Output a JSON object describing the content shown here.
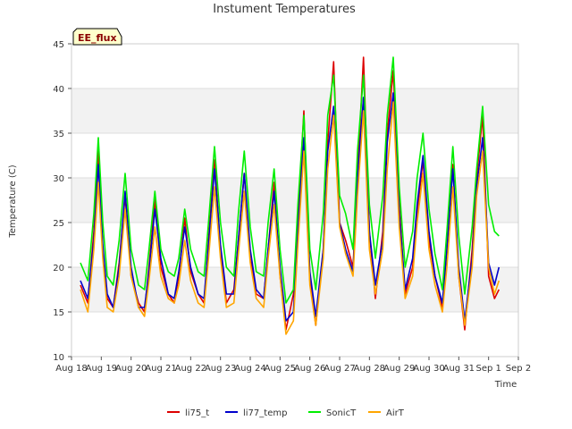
{
  "chart_data": {
    "type": "line",
    "title": "Instument Temperatures",
    "xlabel": "Time",
    "ylabel": "Temperature (C)",
    "ylim": [
      10,
      45
    ],
    "yticks": [
      10,
      15,
      20,
      25,
      30,
      35,
      40,
      45
    ],
    "xlim": [
      18,
      33
    ],
    "xticks": [
      {
        "v": 18,
        "label": "Aug 18"
      },
      {
        "v": 19,
        "label": "Aug 19"
      },
      {
        "v": 20,
        "label": "Aug 20"
      },
      {
        "v": 21,
        "label": "Aug 21"
      },
      {
        "v": 22,
        "label": "Aug 22"
      },
      {
        "v": 23,
        "label": "Aug 23"
      },
      {
        "v": 24,
        "label": "Aug 24"
      },
      {
        "v": 25,
        "label": "Aug 25"
      },
      {
        "v": 26,
        "label": "Aug 26"
      },
      {
        "v": 27,
        "label": "Aug 27"
      },
      {
        "v": 28,
        "label": "Aug 28"
      },
      {
        "v": 29,
        "label": "Aug 29"
      },
      {
        "v": 30,
        "label": "Aug 30"
      },
      {
        "v": 31,
        "label": "Aug 31"
      },
      {
        "v": 32,
        "label": "Sep 1"
      },
      {
        "v": 33,
        "label": "Sep 2"
      }
    ],
    "annotation": "EE_flux",
    "grid": "horizontal bands",
    "legend_position": "bottom",
    "series": [
      {
        "name": "li75_t",
        "color": "#dd0000",
        "x": [
          18.3,
          18.55,
          18.75,
          18.9,
          19.05,
          19.2,
          19.4,
          19.6,
          19.8,
          20.0,
          20.25,
          20.45,
          20.6,
          20.8,
          21.0,
          21.25,
          21.45,
          21.6,
          21.8,
          22.0,
          22.25,
          22.45,
          22.6,
          22.8,
          23.0,
          23.2,
          23.45,
          23.6,
          23.8,
          24.0,
          24.2,
          24.45,
          24.6,
          24.8,
          25.0,
          25.2,
          25.45,
          25.6,
          25.8,
          26.0,
          26.2,
          26.45,
          26.6,
          26.8,
          27.0,
          27.2,
          27.45,
          27.6,
          27.8,
          28.0,
          28.2,
          28.45,
          28.6,
          28.8,
          29.0,
          29.2,
          29.45,
          29.6,
          29.8,
          30.0,
          30.2,
          30.45,
          30.6,
          30.8,
          31.0,
          31.2,
          31.45,
          31.6,
          31.8,
          32.0,
          32.2,
          32.35
        ],
        "y": [
          18.0,
          16.0,
          24.0,
          33.0,
          22.0,
          16.5,
          15.5,
          20.5,
          28.0,
          19.0,
          16.0,
          15.0,
          20.0,
          27.5,
          20.0,
          17.0,
          16.0,
          19.0,
          25.5,
          19.5,
          17.0,
          16.0,
          23.0,
          32.0,
          22.0,
          16.0,
          17.5,
          23.0,
          30.5,
          21.0,
          17.0,
          16.5,
          22.0,
          29.5,
          19.0,
          13.0,
          17.0,
          25.0,
          37.5,
          18.5,
          13.5,
          22.0,
          34.0,
          43.0,
          25.0,
          23.0,
          20.0,
          30.0,
          43.5,
          24.0,
          16.5,
          24.0,
          35.0,
          42.0,
          27.0,
          17.0,
          20.0,
          26.0,
          32.0,
          23.0,
          19.0,
          15.5,
          22.0,
          31.5,
          19.0,
          13.0,
          22.0,
          30.0,
          37.0,
          19.0,
          16.5,
          17.5
        ]
      },
      {
        "name": "li77_temp",
        "color": "#0000cc",
        "x": [
          18.3,
          18.55,
          18.75,
          18.9,
          19.05,
          19.2,
          19.4,
          19.6,
          19.8,
          20.0,
          20.25,
          20.45,
          20.6,
          20.8,
          21.0,
          21.25,
          21.45,
          21.6,
          21.8,
          22.0,
          22.25,
          22.45,
          22.6,
          22.8,
          23.0,
          23.2,
          23.45,
          23.6,
          23.8,
          24.0,
          24.2,
          24.45,
          24.6,
          24.8,
          25.0,
          25.2,
          25.45,
          25.6,
          25.8,
          26.0,
          26.2,
          26.45,
          26.6,
          26.8,
          27.0,
          27.2,
          27.45,
          27.6,
          27.8,
          28.0,
          28.2,
          28.45,
          28.6,
          28.8,
          29.0,
          29.2,
          29.45,
          29.6,
          29.8,
          30.0,
          30.2,
          30.45,
          30.6,
          30.8,
          31.0,
          31.2,
          31.45,
          31.6,
          31.8,
          32.0,
          32.2,
          32.35
        ],
        "y": [
          18.5,
          16.5,
          23.0,
          31.5,
          22.5,
          17.0,
          15.5,
          20.0,
          28.5,
          20.0,
          15.5,
          15.5,
          19.5,
          26.5,
          21.0,
          17.0,
          16.5,
          19.5,
          24.5,
          20.0,
          17.0,
          16.5,
          22.5,
          31.0,
          22.5,
          17.0,
          17.0,
          23.0,
          30.5,
          22.0,
          17.5,
          16.5,
          22.0,
          28.5,
          20.0,
          14.0,
          15.0,
          24.0,
          34.5,
          19.5,
          14.5,
          22.0,
          33.0,
          38.0,
          25.0,
          22.0,
          19.5,
          30.0,
          39.0,
          24.0,
          18.0,
          23.0,
          34.0,
          39.5,
          26.0,
          17.5,
          21.0,
          27.0,
          32.5,
          24.0,
          19.0,
          16.0,
          22.0,
          31.0,
          20.0,
          14.0,
          21.0,
          29.0,
          34.5,
          20.5,
          18.0,
          20.0
        ]
      },
      {
        "name": "SonicT",
        "color": "#00ee00",
        "x": [
          18.3,
          18.55,
          18.75,
          18.9,
          19.05,
          19.2,
          19.4,
          19.6,
          19.8,
          20.0,
          20.25,
          20.45,
          20.6,
          20.8,
          21.0,
          21.25,
          21.45,
          21.6,
          21.8,
          22.0,
          22.25,
          22.45,
          22.6,
          22.8,
          23.0,
          23.2,
          23.45,
          23.6,
          23.8,
          24.0,
          24.2,
          24.45,
          24.6,
          24.8,
          25.0,
          25.2,
          25.45,
          25.6,
          25.8,
          26.0,
          26.2,
          26.45,
          26.6,
          26.8,
          27.0,
          27.2,
          27.45,
          27.6,
          27.8,
          28.0,
          28.2,
          28.45,
          28.6,
          28.8,
          29.0,
          29.2,
          29.45,
          29.6,
          29.8,
          30.0,
          30.2,
          30.45,
          30.6,
          30.8,
          31.0,
          31.2,
          31.45,
          31.6,
          31.8,
          32.0,
          32.2,
          32.35
        ],
        "y": [
          20.5,
          18.5,
          26.0,
          34.5,
          25.0,
          19.0,
          18.0,
          23.0,
          30.5,
          22.0,
          18.0,
          17.5,
          22.0,
          28.5,
          22.0,
          19.5,
          19.0,
          21.0,
          26.5,
          22.0,
          19.5,
          19.0,
          25.0,
          33.5,
          25.0,
          20.0,
          19.0,
          26.0,
          33.0,
          24.5,
          19.5,
          19.0,
          25.0,
          31.0,
          22.0,
          16.0,
          17.5,
          27.0,
          37.0,
          22.0,
          17.5,
          26.0,
          37.0,
          41.5,
          28.0,
          26.0,
          22.0,
          33.0,
          41.5,
          27.0,
          21.0,
          28.0,
          37.0,
          43.5,
          29.0,
          20.0,
          24.0,
          30.0,
          35.0,
          26.5,
          21.5,
          17.5,
          24.0,
          33.5,
          23.5,
          17.0,
          24.5,
          31.0,
          38.0,
          27.0,
          24.0,
          23.5
        ]
      },
      {
        "name": "AirT",
        "color": "#ffa500",
        "x": [
          18.3,
          18.55,
          18.75,
          18.9,
          19.05,
          19.2,
          19.4,
          19.6,
          19.8,
          20.0,
          20.25,
          20.45,
          20.6,
          20.8,
          21.0,
          21.25,
          21.45,
          21.6,
          21.8,
          22.0,
          22.25,
          22.45,
          22.6,
          22.8,
          23.0,
          23.2,
          23.45,
          23.6,
          23.8,
          24.0,
          24.2,
          24.45,
          24.6,
          24.8,
          25.0,
          25.2,
          25.45,
          25.6,
          25.8,
          26.0,
          26.2,
          26.45,
          26.6,
          26.8,
          27.0,
          27.2,
          27.45,
          27.6,
          27.8,
          28.0,
          28.2,
          28.45,
          28.6,
          28.8,
          29.0,
          29.2,
          29.45,
          29.6,
          29.8,
          30.0,
          30.2,
          30.45,
          30.6,
          30.8,
          31.0,
          31.2,
          31.45,
          31.6,
          31.8,
          32.0,
          32.2,
          32.35
        ],
        "y": [
          17.5,
          15.0,
          22.0,
          29.5,
          21.0,
          15.5,
          15.0,
          19.0,
          26.5,
          19.0,
          15.5,
          14.5,
          18.5,
          24.5,
          19.0,
          16.5,
          16.0,
          18.0,
          23.0,
          18.5,
          16.0,
          15.5,
          21.0,
          29.0,
          21.0,
          15.5,
          16.0,
          21.5,
          28.5,
          20.5,
          16.5,
          15.5,
          21.0,
          27.0,
          19.0,
          12.5,
          14.0,
          22.5,
          33.0,
          18.0,
          13.5,
          21.0,
          31.0,
          37.0,
          24.5,
          21.5,
          19.0,
          28.0,
          37.5,
          22.0,
          17.0,
          22.0,
          31.0,
          38.5,
          24.5,
          16.5,
          19.0,
          25.0,
          30.5,
          22.0,
          18.0,
          15.0,
          20.0,
          29.0,
          19.0,
          13.5,
          20.0,
          28.0,
          33.0,
          20.0,
          17.0,
          18.5
        ]
      }
    ]
  }
}
